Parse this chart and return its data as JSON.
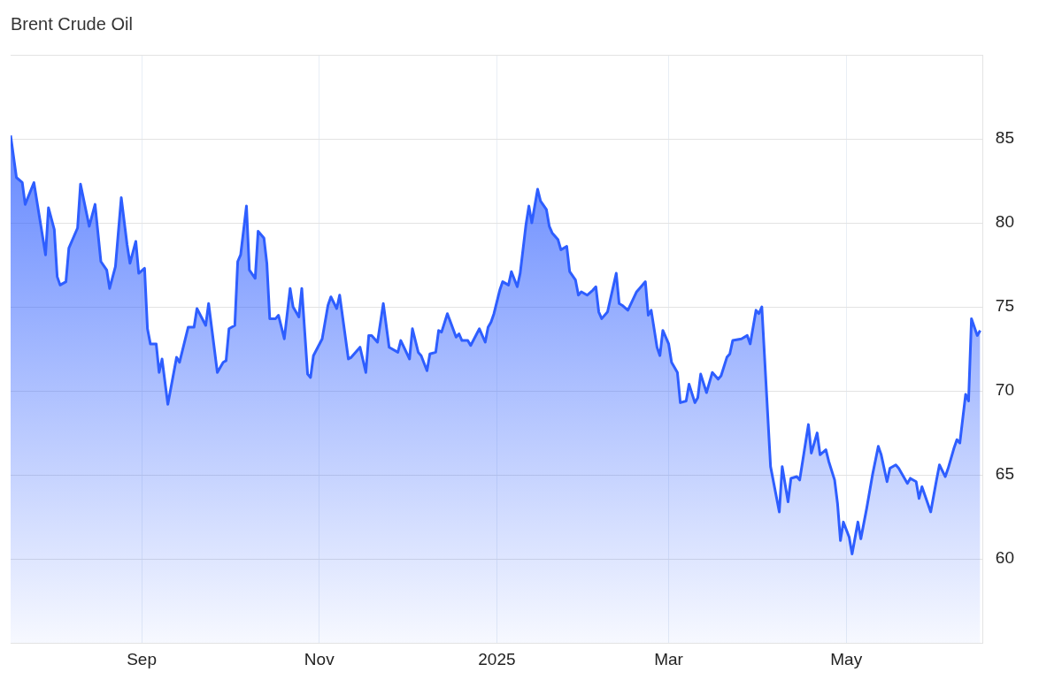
{
  "chart_data": {
    "type": "area",
    "title": "Brent Crude Oil",
    "color": "#2e5eff",
    "grid": true,
    "xlim": [
      "2024-07-18",
      "2025-06-17"
    ],
    "xticks": [
      {
        "value": "2024-09-01",
        "label": "Sep"
      },
      {
        "value": "2024-11-01",
        "label": "Nov"
      },
      {
        "value": "2025-01-01",
        "label": "2025"
      },
      {
        "value": "2025-03-01",
        "label": "Mar"
      },
      {
        "value": "2025-05-01",
        "label": "May"
      }
    ],
    "ylim": [
      55,
      90
    ],
    "yticks": [
      60,
      65,
      70,
      75,
      80,
      85,
      {
        "value": 90,
        "label": null
      }
    ],
    "x": [
      "2024-07-18",
      "2024-07-20",
      "2024-07-22",
      "2024-07-23",
      "2024-07-26",
      "2024-07-30",
      "2024-07-31",
      "2024-08-02",
      "2024-08-03",
      "2024-08-04",
      "2024-08-06",
      "2024-08-07",
      "2024-08-10",
      "2024-08-11",
      "2024-08-14",
      "2024-08-16",
      "2024-08-18",
      "2024-08-20",
      "2024-08-21",
      "2024-08-23",
      "2024-08-25",
      "2024-08-27",
      "2024-08-28",
      "2024-08-30",
      "2024-08-31",
      "2024-09-02",
      "2024-09-03",
      "2024-09-04",
      "2024-09-06",
      "2024-09-07",
      "2024-09-08",
      "2024-09-10",
      "2024-09-13",
      "2024-09-14",
      "2024-09-17",
      "2024-09-19",
      "2024-09-20",
      "2024-09-23",
      "2024-09-24",
      "2024-09-27",
      "2024-09-29",
      "2024-09-30",
      "2024-10-01",
      "2024-10-03",
      "2024-10-04",
      "2024-10-05",
      "2024-10-07",
      "2024-10-08",
      "2024-10-10",
      "2024-10-11",
      "2024-10-13",
      "2024-10-14",
      "2024-10-15",
      "2024-10-17",
      "2024-10-18",
      "2024-10-20",
      "2024-10-22",
      "2024-10-23",
      "2024-10-25",
      "2024-10-26",
      "2024-10-28",
      "2024-10-29",
      "2024-10-30",
      "2024-11-02",
      "2024-11-04",
      "2024-11-05",
      "2024-11-07",
      "2024-11-08",
      "2024-11-11",
      "2024-11-12",
      "2024-11-15",
      "2024-11-17",
      "2024-11-18",
      "2024-11-19",
      "2024-11-21",
      "2024-11-23",
      "2024-11-25",
      "2024-11-28",
      "2024-11-29",
      "2024-12-02",
      "2024-12-03",
      "2024-12-05",
      "2024-12-06",
      "2024-12-08",
      "2024-12-09",
      "2024-12-11",
      "2024-12-12",
      "2024-12-13",
      "2024-12-15",
      "2024-12-18",
      "2024-12-19",
      "2024-12-20",
      "2024-12-22",
      "2024-12-23",
      "2024-12-26",
      "2024-12-28",
      "2024-12-29",
      "2024-12-30",
      "2024-12-31",
      "2025-01-02",
      "2025-01-03",
      "2025-01-05",
      "2025-01-06",
      "2025-01-08",
      "2025-01-09",
      "2025-01-11",
      "2025-01-12",
      "2025-01-13",
      "2025-01-15",
      "2025-01-16",
      "2025-01-18",
      "2025-01-19",
      "2025-01-20",
      "2025-01-22",
      "2025-01-23",
      "2025-01-25",
      "2025-01-26",
      "2025-01-28",
      "2025-01-29",
      "2025-01-30",
      "2025-02-01",
      "2025-02-03",
      "2025-02-04",
      "2025-02-05",
      "2025-02-06",
      "2025-02-08",
      "2025-02-11",
      "2025-02-12",
      "2025-02-13",
      "2025-02-15",
      "2025-02-18",
      "2025-02-19",
      "2025-02-21",
      "2025-02-22",
      "2025-02-23",
      "2025-02-25",
      "2025-02-26",
      "2025-02-27",
      "2025-03-01",
      "2025-03-02",
      "2025-03-04",
      "2025-03-05",
      "2025-03-07",
      "2025-03-08",
      "2025-03-10",
      "2025-03-11",
      "2025-03-12",
      "2025-03-14",
      "2025-03-16",
      "2025-03-18",
      "2025-03-19",
      "2025-03-21",
      "2025-03-22",
      "2025-03-23",
      "2025-03-26",
      "2025-03-28",
      "2025-03-29",
      "2025-03-31",
      "2025-04-01",
      "2025-04-02",
      "2025-04-05",
      "2025-04-08",
      "2025-04-09",
      "2025-04-11",
      "2025-04-12",
      "2025-04-14",
      "2025-04-15",
      "2025-04-16",
      "2025-04-18",
      "2025-04-19",
      "2025-04-21",
      "2025-04-22",
      "2025-04-24",
      "2025-04-25",
      "2025-04-27",
      "2025-04-28",
      "2025-04-29",
      "2025-04-30",
      "2025-05-02",
      "2025-05-03",
      "2025-05-05",
      "2025-05-06",
      "2025-05-08",
      "2025-05-10",
      "2025-05-12",
      "2025-05-13",
      "2025-05-15",
      "2025-05-16",
      "2025-05-18",
      "2025-05-19",
      "2025-05-20",
      "2025-05-22",
      "2025-05-23",
      "2025-05-25",
      "2025-05-26",
      "2025-05-27",
      "2025-05-29",
      "2025-05-30",
      "2025-06-01",
      "2025-06-02",
      "2025-06-04",
      "2025-06-05",
      "2025-06-07",
      "2025-06-08",
      "2025-06-09",
      "2025-06-11",
      "2025-06-12",
      "2025-06-13",
      "2025-06-15",
      "2025-06-16"
    ],
    "values": [
      85.2,
      82.7,
      82.4,
      81.1,
      82.4,
      78.1,
      80.9,
      79.6,
      76.8,
      76.3,
      76.5,
      78.5,
      79.7,
      82.3,
      79.8,
      81.1,
      77.7,
      77.2,
      76.1,
      77.4,
      81.5,
      78.7,
      77.6,
      78.9,
      77.0,
      77.3,
      73.7,
      72.8,
      72.8,
      71.1,
      71.9,
      69.2,
      72.0,
      71.7,
      73.8,
      73.8,
      74.9,
      73.9,
      75.2,
      71.1,
      71.7,
      71.8,
      73.7,
      73.9,
      77.7,
      78.1,
      81.0,
      77.2,
      76.7,
      79.5,
      79.1,
      77.6,
      74.3,
      74.3,
      74.5,
      73.1,
      76.1,
      75.0,
      74.4,
      76.1,
      71.0,
      70.8,
      72.1,
      73.1,
      75.1,
      75.6,
      74.9,
      75.7,
      71.9,
      72.0,
      72.6,
      71.1,
      73.3,
      73.3,
      72.9,
      75.2,
      72.6,
      72.3,
      73.0,
      71.9,
      73.7,
      72.3,
      72.1,
      71.2,
      72.2,
      72.3,
      73.6,
      73.5,
      74.6,
      73.2,
      73.4,
      73.0,
      73.0,
      72.7,
      73.7,
      72.9,
      73.8,
      74.1,
      74.6,
      76.0,
      76.5,
      76.3,
      77.1,
      76.2,
      77.0,
      79.9,
      81.0,
      80.0,
      82.0,
      81.3,
      80.8,
      79.8,
      79.4,
      79.0,
      78.4,
      78.6,
      77.1,
      76.6,
      75.7,
      75.9,
      75.7,
      76.0,
      76.2,
      74.7,
      74.3,
      74.7,
      77.0,
      75.2,
      75.1,
      74.8,
      75.9,
      76.1,
      76.5,
      74.5,
      74.8,
      72.6,
      72.1,
      73.6,
      72.8,
      71.7,
      71.1,
      69.3,
      69.4,
      70.4,
      69.3,
      69.6,
      71.0,
      69.9,
      71.1,
      70.7,
      70.9,
      72.0,
      72.2,
      73.0,
      73.1,
      73.3,
      72.8,
      74.8,
      74.6,
      75.0,
      65.5,
      62.8,
      65.5,
      63.4,
      64.8,
      64.9,
      64.7,
      65.8,
      68.0,
      66.3,
      67.5,
      66.2,
      66.5,
      65.8,
      64.7,
      63.3,
      61.1,
      62.2,
      61.3,
      60.3,
      62.2,
      61.2,
      63.0,
      65.0,
      66.7,
      66.2,
      64.6,
      65.4,
      65.6,
      65.4,
      65.1,
      64.5,
      64.8,
      64.6,
      63.6,
      64.3,
      63.3,
      62.8,
      64.7,
      65.6,
      64.9,
      65.4,
      66.6,
      67.1,
      66.9,
      69.8,
      69.4,
      74.3,
      73.3,
      73.6
    ]
  }
}
